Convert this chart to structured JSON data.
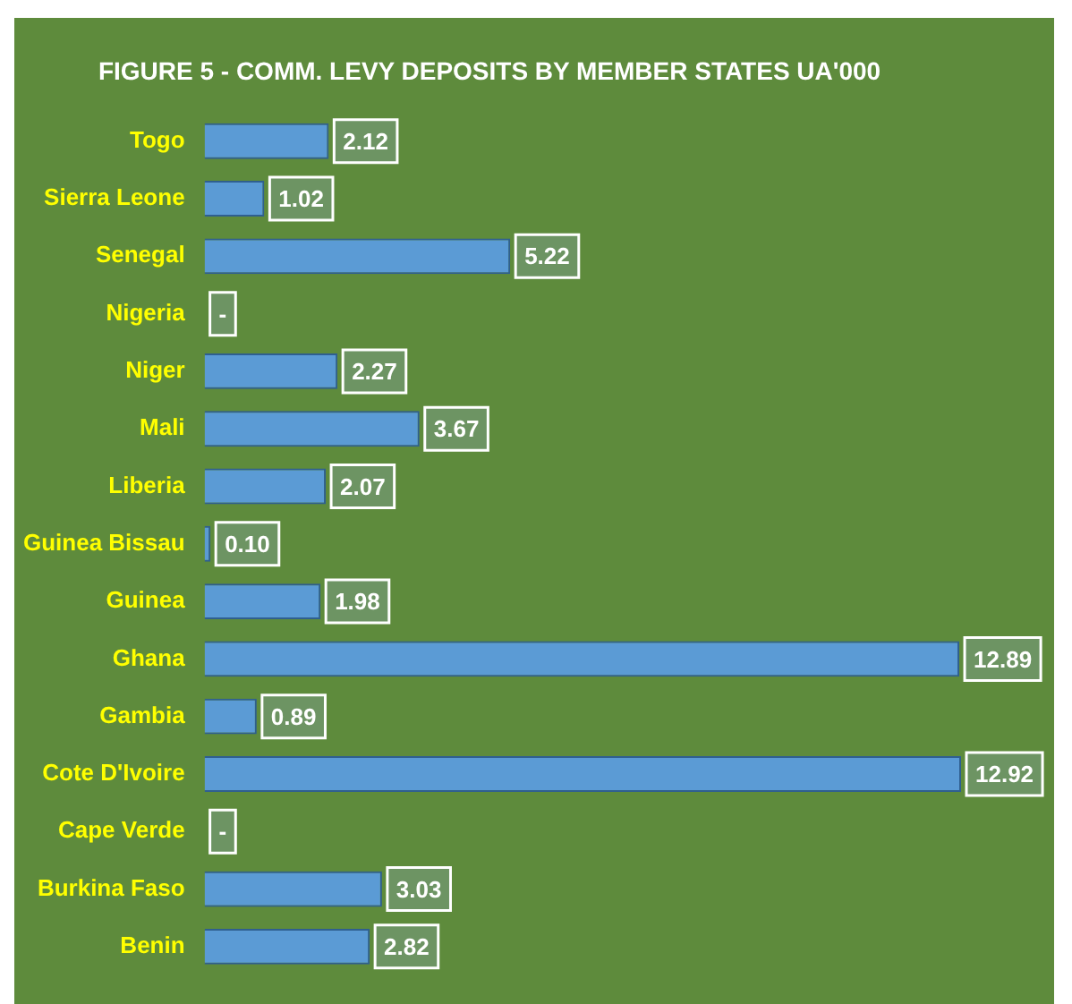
{
  "chart_data": {
    "type": "bar",
    "orientation": "horizontal",
    "tick_labels": "y",
    "title": "FIGURE 5 - COMM. LEVY DEPOSITS BY MEMBER STATES UA'000",
    "categories": [
      "Togo",
      "Sierra Leone",
      "Senegal",
      "Nigeria",
      "Niger",
      "Mali",
      "Liberia",
      "Guinea Bissau",
      "Guinea",
      "Ghana",
      "Gambia",
      "Cote D'Ivoire",
      "Cape Verde",
      "Burkina Faso",
      "Benin"
    ],
    "values": [
      2.12,
      1.02,
      5.22,
      0,
      2.27,
      3.67,
      2.07,
      0.1,
      1.98,
      12.89,
      0.89,
      12.92,
      0,
      3.03,
      2.82
    ],
    "value_labels": [
      "2.12",
      "1.02",
      "5.22",
      "-",
      "2.27",
      "3.67",
      "2.07",
      "0.10",
      "1.98",
      "12.89",
      "0.89",
      "12.92",
      "-",
      "3.03",
      "2.82"
    ],
    "color": "#5b9bd5",
    "legend": false
  }
}
